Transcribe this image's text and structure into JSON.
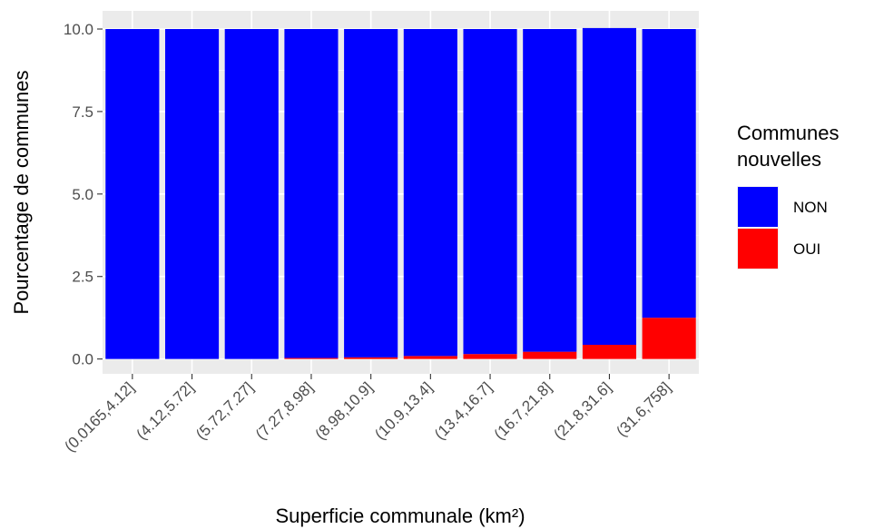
{
  "chart_data": {
    "type": "bar",
    "stacked": true,
    "title": "",
    "xlabel": "Superficie communale (km²)",
    "ylabel": "Pourcentage de communes",
    "ylim": [
      -0.45,
      10.55
    ],
    "yticks": [
      "0.0",
      "2.5",
      "5.0",
      "7.5",
      "10.0"
    ],
    "ytick_values": [
      0,
      2.5,
      5,
      7.5,
      10
    ],
    "grid": true,
    "panel_background": "#ebebeb",
    "categories": [
      "(0.0165,4.12]",
      "(4.12,5.72]",
      "(5.72,7.27]",
      "(7.27,8.98]",
      "(8.98,10.9]",
      "(10.9,13.4]",
      "(13.4,16.7]",
      "(16.7,21.8]",
      "(21.8,31.6]",
      "(31.6,758]"
    ],
    "series": [
      {
        "name": "OUI",
        "color": "#ff0000",
        "values": [
          0.0,
          0.0,
          0.0,
          0.03,
          0.05,
          0.09,
          0.15,
          0.22,
          0.43,
          1.25
        ]
      },
      {
        "name": "NON",
        "color": "#0000ff",
        "values": [
          10.0,
          10.0,
          10.0,
          9.97,
          9.95,
          9.91,
          9.85,
          9.78,
          9.6,
          8.75
        ]
      }
    ],
    "legend": {
      "title_lines": [
        "Communes",
        "nouvelles"
      ],
      "position": "right",
      "entries": [
        {
          "label": "NON",
          "color": "#0000ff"
        },
        {
          "label": "OUI",
          "color": "#ff0000"
        }
      ]
    }
  }
}
